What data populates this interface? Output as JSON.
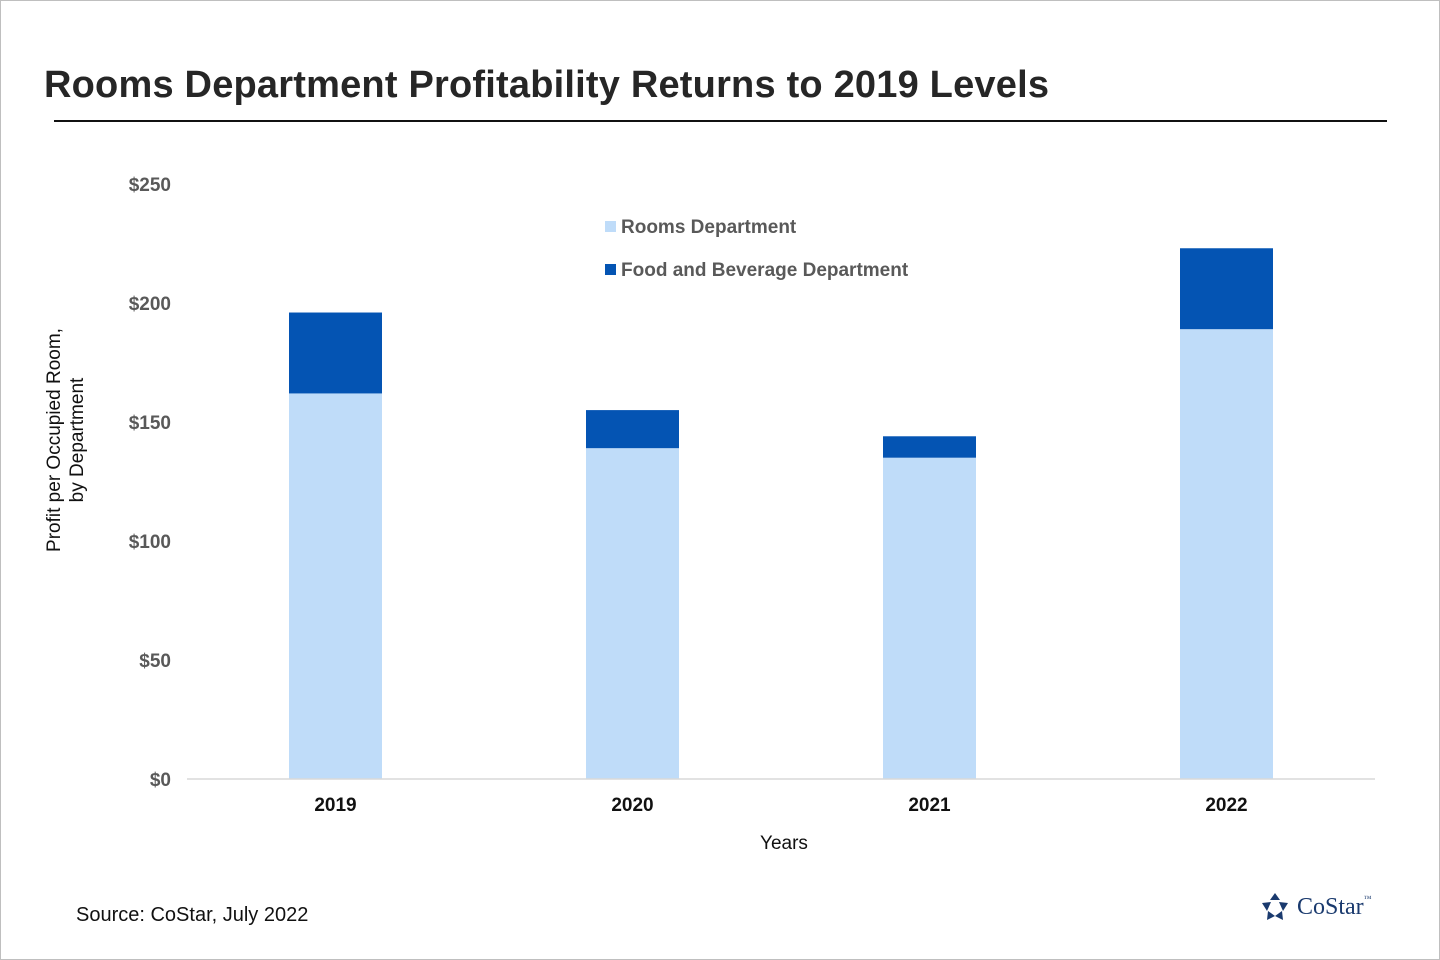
{
  "title": "Rooms Department Profitability Returns to 2019 Levels",
  "source": "Source: CoStar, July 2022",
  "logo": {
    "name": "CoStar",
    "tm": "™"
  },
  "colors": {
    "rooms": "#bfdcf9",
    "fnb": "#0454b3"
  },
  "chart_data": {
    "type": "bar",
    "stacked": true,
    "categories": [
      "2019",
      "2020",
      "2021",
      "2022"
    ],
    "series": [
      {
        "name": "Rooms Department",
        "values": [
          162,
          139,
          135,
          189
        ]
      },
      {
        "name": "Food and Beverage Department",
        "values": [
          34,
          16,
          9,
          34
        ]
      }
    ],
    "xlabel": "Years",
    "ylabel": [
      "Profit per Occupied Room,",
      "by Department"
    ],
    "ylim": [
      0,
      250
    ],
    "yticks": [
      0,
      50,
      100,
      150,
      200,
      250
    ],
    "ytick_labels": [
      "$0",
      "$50",
      "$100",
      "$150",
      "$200",
      "$250"
    ],
    "grid": false,
    "legend": "top-center"
  }
}
